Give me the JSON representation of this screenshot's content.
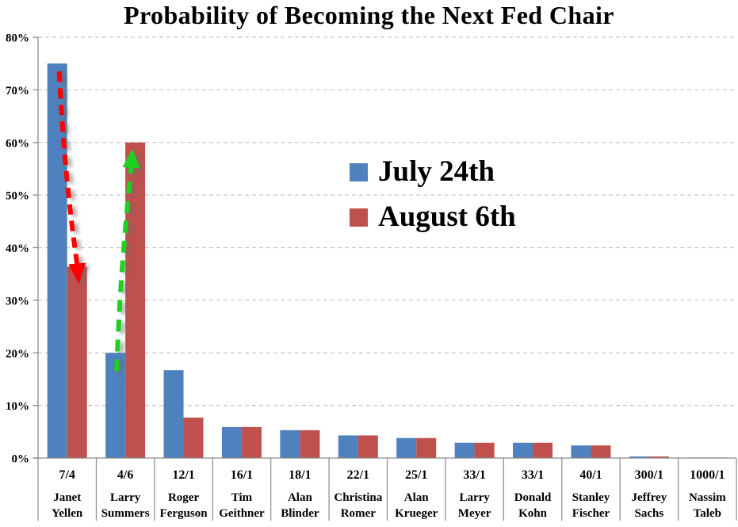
{
  "chart_data": {
    "type": "bar",
    "title": "Probability of Becoming the Next Fed Chair",
    "xlabel": "",
    "ylabel": "",
    "ylim": [
      0,
      80
    ],
    "ytick_step": 10,
    "ytick_suffix": "%",
    "grid": "horizontal-dashed",
    "legend_position": "upper-center-right",
    "axis_color": "#8a8a8a",
    "gridline_color": "#c8c8c8",
    "categories": [
      {
        "odds": "7/4",
        "name": "Janet Yellen"
      },
      {
        "odds": "4/6",
        "name": "Larry Summers"
      },
      {
        "odds": "12/1",
        "name": "Roger Ferguson"
      },
      {
        "odds": "16/1",
        "name": "Tim Geithner"
      },
      {
        "odds": "18/1",
        "name": "Alan Blinder"
      },
      {
        "odds": "22/1",
        "name": "Christina Romer"
      },
      {
        "odds": "25/1",
        "name": "Alan Krueger"
      },
      {
        "odds": "33/1",
        "name": "Larry Meyer"
      },
      {
        "odds": "33/1",
        "name": "Donald Kohn"
      },
      {
        "odds": "40/1",
        "name": "Stanley Fischer"
      },
      {
        "odds": "300/1",
        "name": "Jeffrey Sachs"
      },
      {
        "odds": "1000/1",
        "name": "Nassim Taleb"
      }
    ],
    "series": [
      {
        "name": "July 24th",
        "color": "#4E81BD",
        "values": [
          75,
          20,
          16.7,
          5.9,
          5.3,
          4.3,
          3.8,
          2.9,
          2.9,
          2.4,
          0.3,
          0.1
        ]
      },
      {
        "name": "August 6th",
        "color": "#C0504D",
        "values": [
          36.4,
          60,
          7.7,
          5.9,
          5.3,
          4.3,
          3.8,
          2.9,
          2.9,
          2.4,
          0.3,
          0.1
        ]
      }
    ],
    "annotations": [
      {
        "type": "arrow",
        "category": "Janet Yellen",
        "from_series": "July 24th",
        "to_series": "August 6th",
        "direction": "down",
        "style": "dashed",
        "color": "#FF0000"
      },
      {
        "type": "arrow",
        "category": "Larry Summers",
        "from_series": "July 24th",
        "to_series": "August 6th",
        "direction": "up",
        "style": "dashed",
        "color": "#1FD11F"
      }
    ]
  },
  "legend": {
    "items": [
      {
        "label": "July 24th",
        "color": "#4E81BD"
      },
      {
        "label": "August 6th",
        "color": "#C0504D"
      }
    ]
  }
}
